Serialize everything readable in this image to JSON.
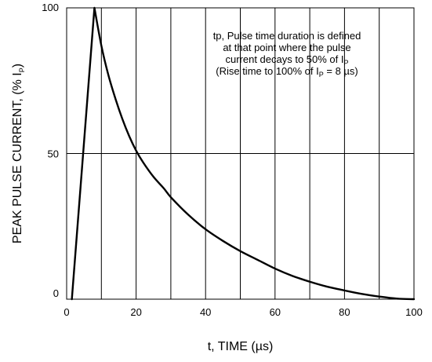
{
  "chart_data": {
    "type": "line",
    "title": "",
    "xlabel": "t, TIME (µs)",
    "ylabel": {
      "main": "PEAK PULSE CURRENT, (% I",
      "sub": "P",
      "close": ")"
    },
    "xlim": [
      0,
      100
    ],
    "ylim": [
      0,
      100
    ],
    "x_ticks": [
      "0",
      "20",
      "40",
      "60",
      "80",
      "100"
    ],
    "y_ticks": [
      "0",
      "50",
      "100"
    ],
    "x_grid_step": 10,
    "y_grid_values": [
      50
    ],
    "grid": true,
    "series": [
      {
        "x": [
          1.5,
          8,
          10,
          12,
          14,
          16,
          18,
          20,
          22,
          25,
          28,
          30,
          35,
          40,
          45,
          50,
          55,
          60,
          65,
          70,
          75,
          80,
          85,
          90,
          95,
          100
        ],
        "y": [
          0,
          100,
          87,
          77,
          69,
          62,
          56,
          51,
          47,
          42,
          38,
          35,
          29,
          24,
          20,
          16.5,
          13.5,
          10.5,
          8,
          6,
          4.3,
          3,
          1.8,
          0.9,
          0.2,
          0
        ]
      }
    ],
    "annotation": {
      "line1": "tp, Pulse time duration is defined",
      "line2": "at that point where the pulse",
      "line3": {
        "main": "current decays to 50% of I",
        "sub": "P"
      },
      "line4": {
        "pre": "(Rise time to 100% of I",
        "sub": "P",
        "post": " = 8 µs)"
      }
    }
  }
}
